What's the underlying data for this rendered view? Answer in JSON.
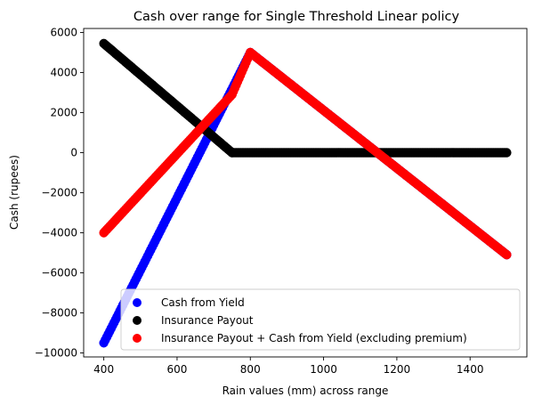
{
  "chart_data": {
    "type": "scatter",
    "title": "Cash over range for Single Threshold Linear policy",
    "xlabel": "Rain values (mm) across range",
    "ylabel": "Cash (rupees)",
    "xlim": [
      345,
      1555
    ],
    "ylim": [
      -10200,
      6200
    ],
    "xticks": [
      400,
      600,
      800,
      1000,
      1200,
      1400
    ],
    "yticks": [
      -10000,
      -8000,
      -6000,
      -4000,
      -2000,
      0,
      2000,
      4000,
      6000
    ],
    "grid": false,
    "legend_position": "lower-right",
    "series": [
      {
        "name": "Cash from Yield",
        "color": "#0000ff",
        "x": [
          400,
          800,
          1500
        ],
        "y": [
          -9500,
          5000,
          -5100
        ]
      },
      {
        "name": "Insurance Payout",
        "color": "#000000",
        "x": [
          400,
          750,
          1500
        ],
        "y": [
          5450,
          0,
          0
        ]
      },
      {
        "name": "Insurance Payout + Cash from Yield (excluding premium)",
        "color": "#ff0000",
        "x": [
          400,
          750,
          800,
          1500
        ],
        "y": [
          -4000,
          2900,
          5000,
          -5100
        ]
      }
    ]
  }
}
